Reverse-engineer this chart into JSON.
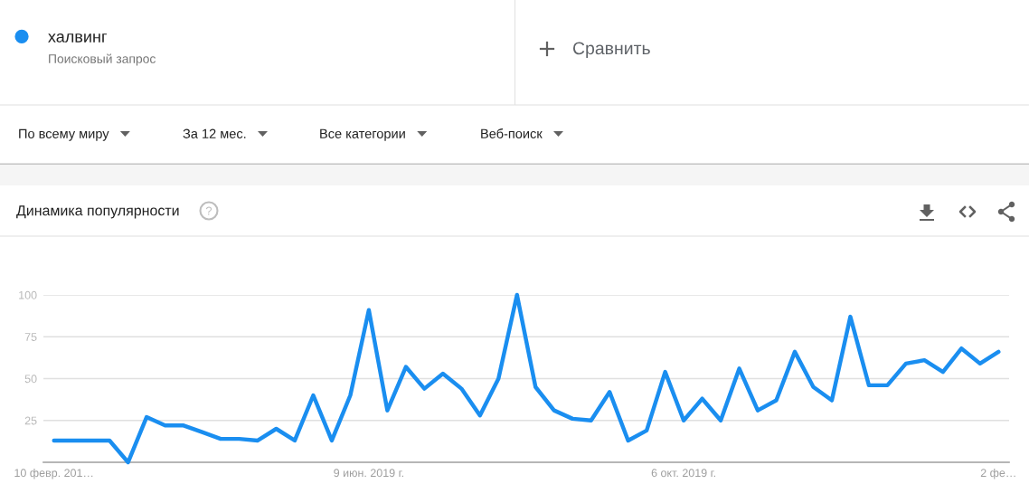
{
  "chart_data": {
    "type": "line",
    "title": "Динамика популярности",
    "annotations": [
      "Поисковый запрос",
      "Сравнить",
      "По всему миру",
      "За 12 мес.",
      "Все категории",
      "Веб-поиск"
    ],
    "series": [
      {
        "name": "халвинг",
        "color": "#1a8ef0",
        "x": [
          "2019-02-10",
          "2019-02-17",
          "2019-02-24",
          "2019-03-03",
          "2019-03-10",
          "2019-03-17",
          "2019-03-24",
          "2019-03-31",
          "2019-04-07",
          "2019-04-14",
          "2019-04-21",
          "2019-04-28",
          "2019-05-05",
          "2019-05-12",
          "2019-05-19",
          "2019-05-26",
          "2019-06-02",
          "2019-06-09",
          "2019-06-16",
          "2019-06-23",
          "2019-06-30",
          "2019-07-07",
          "2019-07-14",
          "2019-07-21",
          "2019-07-28",
          "2019-08-04",
          "2019-08-11",
          "2019-08-18",
          "2019-08-25",
          "2019-09-01",
          "2019-09-08",
          "2019-09-15",
          "2019-09-22",
          "2019-09-29",
          "2019-10-06",
          "2019-10-13",
          "2019-10-20",
          "2019-10-27",
          "2019-11-03",
          "2019-11-10",
          "2019-11-17",
          "2019-11-24",
          "2019-12-01",
          "2019-12-08",
          "2019-12-15",
          "2019-12-22",
          "2019-12-29",
          "2020-01-05",
          "2020-01-12",
          "2020-01-19",
          "2020-01-26",
          "2020-02-02"
        ],
        "values": [
          13,
          13,
          13,
          13,
          0,
          27,
          22,
          22,
          18,
          14,
          14,
          13,
          20,
          13,
          40,
          13,
          40,
          91,
          31,
          57,
          44,
          53,
          44,
          28,
          50,
          100,
          45,
          31,
          26,
          25,
          42,
          13,
          19,
          54,
          25,
          38,
          25,
          56,
          31,
          37,
          66,
          45,
          37,
          87,
          46,
          46,
          59,
          61,
          54,
          68,
          59,
          66
        ]
      }
    ],
    "xlim": [
      "2019-02-06",
      "2020-02-06"
    ],
    "xticks": [
      {
        "value": "2019-02-10",
        "label": "10 февр. 201…"
      },
      {
        "value": "2019-06-09",
        "label": "9 июн. 2019 г."
      },
      {
        "value": "2019-10-06",
        "label": "6 окт. 2019 г."
      },
      {
        "value": "2020-02-02",
        "label": "2 фе…"
      }
    ],
    "ylim": [
      0,
      100
    ],
    "yticks": [
      25,
      50,
      75,
      100
    ],
    "grid": "y",
    "legend": "top left"
  }
}
